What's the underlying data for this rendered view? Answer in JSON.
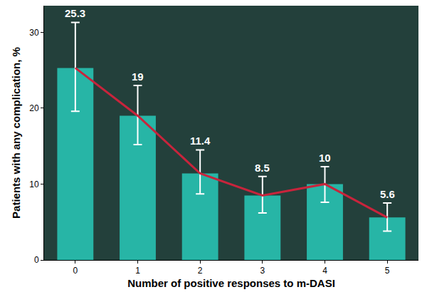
{
  "chart_data": {
    "type": "bar",
    "x_label": "Number of positive responses to m-DASI",
    "y_label": "Patients with any complication, %",
    "categories": [
      "0",
      "1",
      "2",
      "3",
      "4",
      "5"
    ],
    "series": [
      {
        "type": "bar",
        "color": "#27b5a6",
        "values": [
          25.3,
          19,
          11.4,
          8.5,
          10,
          5.6
        ],
        "error_plus": [
          6.0,
          4.0,
          3.1,
          2.5,
          2.3,
          1.9
        ],
        "error_minus": [
          5.7,
          3.8,
          2.7,
          2.3,
          2.4,
          1.8
        ]
      },
      {
        "type": "line",
        "color": "#c8243c",
        "values": [
          25.3,
          19,
          11.4,
          8.5,
          10,
          5.6
        ]
      }
    ],
    "ylim": [
      0,
      33.5
    ],
    "yticks": [
      0,
      10,
      20,
      30
    ],
    "grid": false,
    "data_labels": true
  }
}
